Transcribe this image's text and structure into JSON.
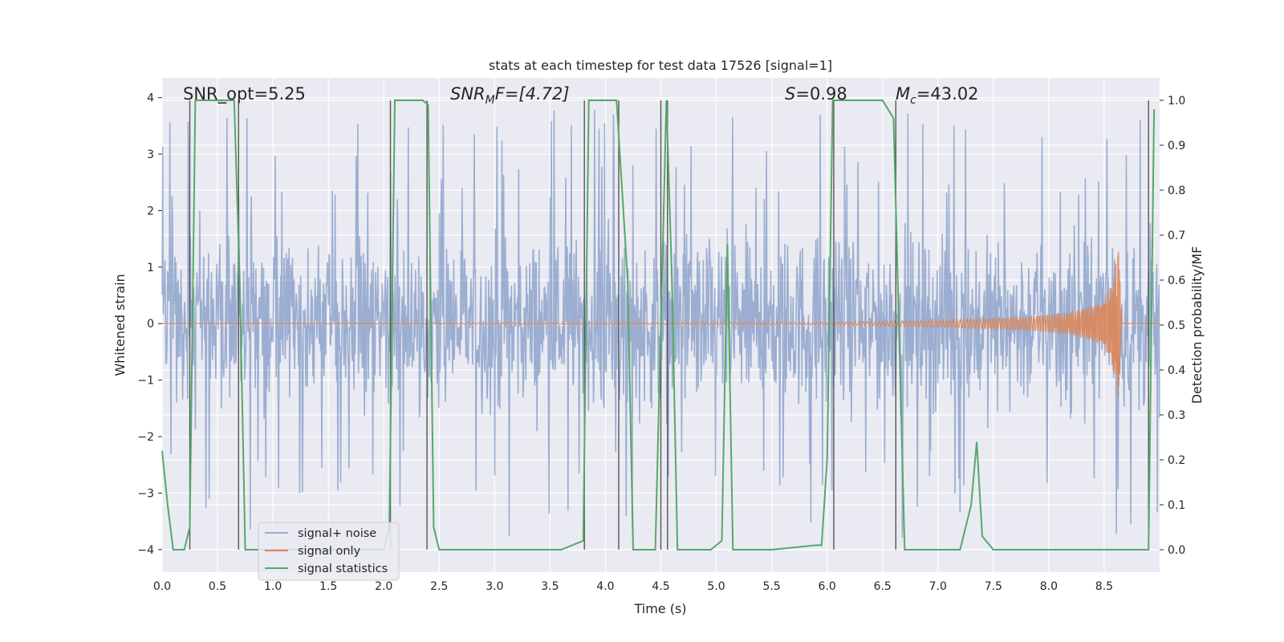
{
  "chart_data": {
    "type": "line",
    "title": "stats at each timestep for test data 17526 [signal=1]",
    "xlabel": "Time (s)",
    "ylabel_left": "Whitened strain",
    "ylabel_right": "Detection probability/MF",
    "xlim": [
      0.0,
      9.0
    ],
    "ylim_left": [
      -4.4,
      4.35
    ],
    "ylim_right": [
      -0.05,
      1.05
    ],
    "x_ticks": [
      0.0,
      0.5,
      1.0,
      1.5,
      2.0,
      2.5,
      3.0,
      3.5,
      4.0,
      4.5,
      5.0,
      5.5,
      6.0,
      6.5,
      7.0,
      7.5,
      8.0,
      8.5
    ],
    "x_tick_labels": [
      "0.0",
      "0.5",
      "1.0",
      "1.5",
      "2.0",
      "2.5",
      "3.0",
      "3.5",
      "4.0",
      "4.5",
      "5.0",
      "5.5",
      "6.0",
      "6.5",
      "7.0",
      "7.5",
      "8.0",
      "8.5"
    ],
    "y_ticks_left": [
      -4,
      -3,
      -2,
      -1,
      0,
      1,
      2,
      3,
      4
    ],
    "y_tick_labels_left": [
      "−4",
      "−3",
      "−2",
      "−1",
      "0",
      "1",
      "2",
      "3",
      "4"
    ],
    "y_ticks_right": [
      0.0,
      0.1,
      0.2,
      0.3,
      0.4,
      0.5,
      0.6,
      0.7,
      0.8,
      0.9,
      1.0
    ],
    "y_tick_labels_right": [
      "0.0",
      "0.1",
      "0.2",
      "0.3",
      "0.4",
      "0.5",
      "0.6",
      "0.7",
      "0.8",
      "0.9",
      "1.0"
    ],
    "annotations": {
      "snr_opt": "SNR_opt=5.25",
      "snr_mf_name": "SNR",
      "snr_mf_sub": "M",
      "snr_mf_value": "F=[4.72]",
      "s_name": "S",
      "s_value": "=0.98",
      "mc_name": "M",
      "mc_sub": "c",
      "mc_value": "=43.02"
    },
    "legend": {
      "position": "lower-left",
      "entries": [
        "signal+ noise",
        "signal only",
        "signal statistics"
      ]
    },
    "series": [
      {
        "name": "signal+ noise",
        "color": "#4c72b0",
        "alpha": 0.5,
        "note": "dense noise, roughly within ±2.5 with spikes to ±3.7",
        "amplitude_typical": 2.2,
        "amplitude_spike": 3.8
      },
      {
        "name": "signal only",
        "color": "#dd8452",
        "note": "chirp, near zero until ~6 s, peaking at t≈8.63",
        "x": [
          0,
          6.0,
          7.0,
          7.8,
          8.2,
          8.45,
          8.55,
          8.6,
          8.63,
          8.66
        ],
        "amplitude": [
          0.002,
          0.02,
          0.06,
          0.12,
          0.2,
          0.35,
          0.6,
          1.0,
          1.35,
          0.0
        ]
      },
      {
        "name": "signal statistics",
        "color": "#55a868",
        "axis": "right",
        "x": [
          0.0,
          0.05,
          0.1,
          0.2,
          0.25,
          0.3,
          0.35,
          0.4,
          0.5,
          0.6,
          0.65,
          0.7,
          0.75,
          0.8,
          0.9,
          1.0,
          1.2,
          1.5,
          1.8,
          2.0,
          2.05,
          2.1,
          2.15,
          2.2,
          2.3,
          2.35,
          2.4,
          2.45,
          2.5,
          2.8,
          3.2,
          3.6,
          3.8,
          3.85,
          3.9,
          4.0,
          4.05,
          4.1,
          4.2,
          4.25,
          4.3,
          4.45,
          4.5,
          4.55,
          4.6,
          4.65,
          4.7,
          4.75,
          4.8,
          4.95,
          5.05,
          5.1,
          5.15,
          5.2,
          5.5,
          5.9,
          5.95,
          6.0,
          6.05,
          6.1,
          6.2,
          6.5,
          6.6,
          6.7,
          6.8,
          6.9,
          7.0,
          7.2,
          7.3,
          7.35,
          7.4,
          7.5,
          8.0,
          8.5,
          8.8,
          8.9,
          8.95
        ],
        "y": [
          0.22,
          0.1,
          0.0,
          0.0,
          0.05,
          1.0,
          1.0,
          1.0,
          1.0,
          1.0,
          1.0,
          0.6,
          0.0,
          0.0,
          0.0,
          0.0,
          0.0,
          0.0,
          0.0,
          0.0,
          0.05,
          1.0,
          1.0,
          1.0,
          1.0,
          1.0,
          0.99,
          0.05,
          0.0,
          0.0,
          0.0,
          0.0,
          0.02,
          1.0,
          1.0,
          1.0,
          1.0,
          1.0,
          0.6,
          0.0,
          0.0,
          0.0,
          0.5,
          1.0,
          0.6,
          0.0,
          0.0,
          0.0,
          0.0,
          0.0,
          0.02,
          0.68,
          0.0,
          0.0,
          0.0,
          0.01,
          0.01,
          0.2,
          1.0,
          1.0,
          1.0,
          1.0,
          0.96,
          0.0,
          0.0,
          0.0,
          0.0,
          0.0,
          0.1,
          0.24,
          0.03,
          0.0,
          0.0,
          0.0,
          0.0,
          0.0,
          0.98
        ]
      }
    ],
    "vertical_markers": {
      "color": "#555555",
      "x": [
        0.25,
        0.69,
        2.06,
        2.39,
        3.81,
        4.12,
        4.5,
        4.56,
        6.06,
        6.62,
        8.9
      ]
    }
  }
}
